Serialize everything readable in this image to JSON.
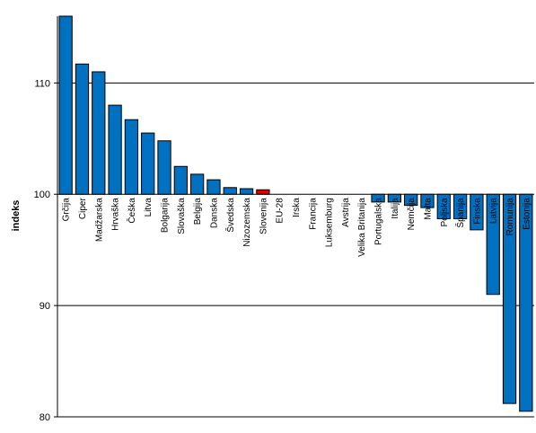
{
  "chart_data": {
    "type": "bar",
    "ylabel": "indeks",
    "ylim": [
      80,
      116
    ],
    "yticks": [
      80,
      90,
      100,
      110
    ],
    "baseline": 100,
    "grid": true,
    "colors": {
      "bar": "#0070C0",
      "highlight": "#E00000",
      "outline": "#000000"
    },
    "highlight_category": "Slovenija",
    "categories": [
      "Grčija",
      "Ciper",
      "Madžarska",
      "Hrvaška",
      "Češka",
      "Litva",
      "Bolgarija",
      "Slovaška",
      "Belgija",
      "Danska",
      "Švedska",
      "Nizozemska",
      "Slovenija",
      "EU-28",
      "Irska",
      "Francija",
      "Luksemburg",
      "Avstrija",
      "Velika Britanija",
      "Portugalska",
      "Italija",
      "Nemčija",
      "Malta",
      "Poljska",
      "Španija",
      "Finska",
      "Latvija",
      "Romunija",
      "Estonija"
    ],
    "values": [
      116.0,
      111.7,
      111.0,
      108.0,
      106.7,
      105.5,
      104.8,
      102.5,
      101.8,
      101.3,
      100.6,
      100.5,
      100.4,
      100.0,
      100.0,
      100.0,
      100.0,
      100.0,
      100.0,
      99.3,
      99.3,
      99.0,
      98.8,
      97.8,
      97.8,
      96.8,
      91.0,
      81.2,
      80.5
    ]
  }
}
